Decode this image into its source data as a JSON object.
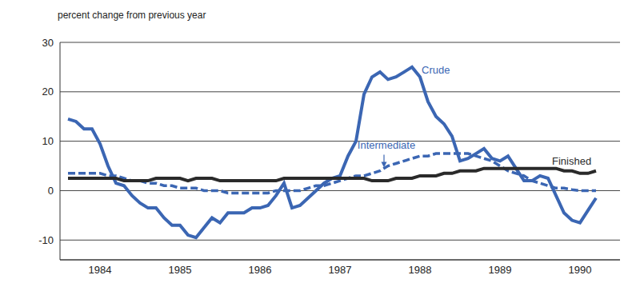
{
  "chart_data": {
    "type": "line",
    "ylabel": "percent change from previous year",
    "x": [
      1984.1,
      1984.2,
      1984.3,
      1984.4,
      1984.5,
      1984.6,
      1984.7,
      1984.8,
      1984.9,
      1985.0,
      1985.1,
      1985.2,
      1985.3,
      1985.4,
      1985.5,
      1985.6,
      1985.7,
      1985.8,
      1985.9,
      1986.0,
      1986.1,
      1986.2,
      1986.3,
      1986.4,
      1986.5,
      1986.6,
      1986.7,
      1986.8,
      1986.9,
      1987.0,
      1987.1,
      1987.2,
      1987.3,
      1987.4,
      1987.5,
      1987.6,
      1987.7,
      1987.8,
      1987.9,
      1988.0,
      1988.1,
      1988.2,
      1988.3,
      1988.4,
      1988.5,
      1988.6,
      1988.7,
      1988.8,
      1988.9,
      1989.0,
      1989.1,
      1989.2,
      1989.3,
      1989.4,
      1989.5,
      1989.6,
      1989.7,
      1989.8,
      1989.9,
      1990.0,
      1990.1,
      1990.2,
      1990.3,
      1990.4,
      1990.5,
      1990.6,
      1990.7
    ],
    "series": [
      {
        "name": "Crude",
        "color": "#3b66b3",
        "line_style": "solid",
        "values": [
          14.5,
          14,
          12.5,
          12.5,
          9.5,
          5,
          1.5,
          1,
          -1,
          -2.5,
          -3.5,
          -3.5,
          -5.5,
          -7,
          -7,
          -9,
          -9.5,
          -7.5,
          -5.5,
          -6.5,
          -4.5,
          -4.5,
          -4.5,
          -3.5,
          -3.5,
          -3,
          -1,
          1.5,
          -3.5,
          -3,
          -1.5,
          0,
          1.5,
          2.5,
          3,
          7,
          10,
          19.5,
          23,
          24,
          22.5,
          23,
          24,
          25,
          23,
          18,
          15,
          13.5,
          11,
          6,
          6.5,
          7.5,
          8.5,
          6.5,
          6,
          7,
          4.5,
          2,
          2,
          3,
          2.5,
          -1,
          -4.5,
          -6,
          -6.5,
          -4,
          -1.5
        ]
      },
      {
        "name": "Intermediate",
        "color": "#3b66b3",
        "line_style": "dashed",
        "values": [
          3.5,
          3.5,
          3.5,
          3.5,
          3.5,
          3,
          3,
          2.5,
          2,
          2,
          1.5,
          1.5,
          1,
          1,
          0.5,
          0.5,
          0.5,
          0,
          0,
          0,
          -0.5,
          -0.5,
          -0.5,
          -0.5,
          -0.5,
          -0.5,
          0,
          0,
          0,
          0,
          0.5,
          1,
          1,
          1.5,
          2,
          2.5,
          3,
          3,
          3.5,
          4,
          5,
          5.5,
          6,
          6.5,
          7,
          7,
          7.5,
          7.5,
          7.5,
          7.5,
          7.5,
          7,
          6.5,
          6,
          5,
          4,
          3.5,
          3,
          2,
          1.5,
          1,
          0.5,
          0.5,
          0.2,
          0,
          0,
          0
        ]
      },
      {
        "name": "Finished",
        "color": "#2a2a2a",
        "line_style": "solid",
        "values": [
          2.5,
          2.5,
          2.5,
          2.5,
          2.5,
          2.5,
          2.5,
          2,
          2,
          2,
          2,
          2.5,
          2.5,
          2.5,
          2.5,
          2,
          2.5,
          2.5,
          2.5,
          2,
          2,
          2,
          2,
          2,
          2,
          2,
          2,
          2.5,
          2.5,
          2.5,
          2.5,
          2.5,
          2.5,
          2.5,
          2.5,
          2.5,
          2.5,
          2.5,
          2,
          2,
          2,
          2.5,
          2.5,
          2.5,
          3,
          3,
          3,
          3.5,
          3.5,
          4,
          4,
          4,
          4.5,
          4.5,
          4.5,
          4.5,
          4.5,
          4.5,
          4.5,
          4.5,
          4.5,
          4.5,
          4,
          4,
          3.5,
          3.5,
          4
        ]
      }
    ],
    "annotations": [
      {
        "text": "Crude",
        "x": 1988.52,
        "y": 24.2,
        "color": "#3b66b3"
      },
      {
        "text": "Intermediate",
        "x": 1988.08,
        "y": 9,
        "color": "#3b66b3",
        "xy": [
          1988.05,
          4.7
        ]
      },
      {
        "text": "Finished",
        "x": 1990.15,
        "y": 5.8,
        "color": "#2a2a2a"
      }
    ],
    "xlim": [
      1984,
      1991
    ],
    "xticks": [
      {
        "value": 1984.5,
        "label": "1984"
      },
      {
        "value": 1985.5,
        "label": "1985"
      },
      {
        "value": 1986.5,
        "label": "1986"
      },
      {
        "value": 1987.5,
        "label": "1987"
      },
      {
        "value": 1988.5,
        "label": "1988"
      },
      {
        "value": 1989.5,
        "label": "1989"
      },
      {
        "value": 1990.5,
        "label": "1990"
      }
    ],
    "ylim": [
      -14,
      30
    ],
    "yticks": [
      -10,
      0,
      10,
      20,
      30
    ],
    "grid": true
  }
}
